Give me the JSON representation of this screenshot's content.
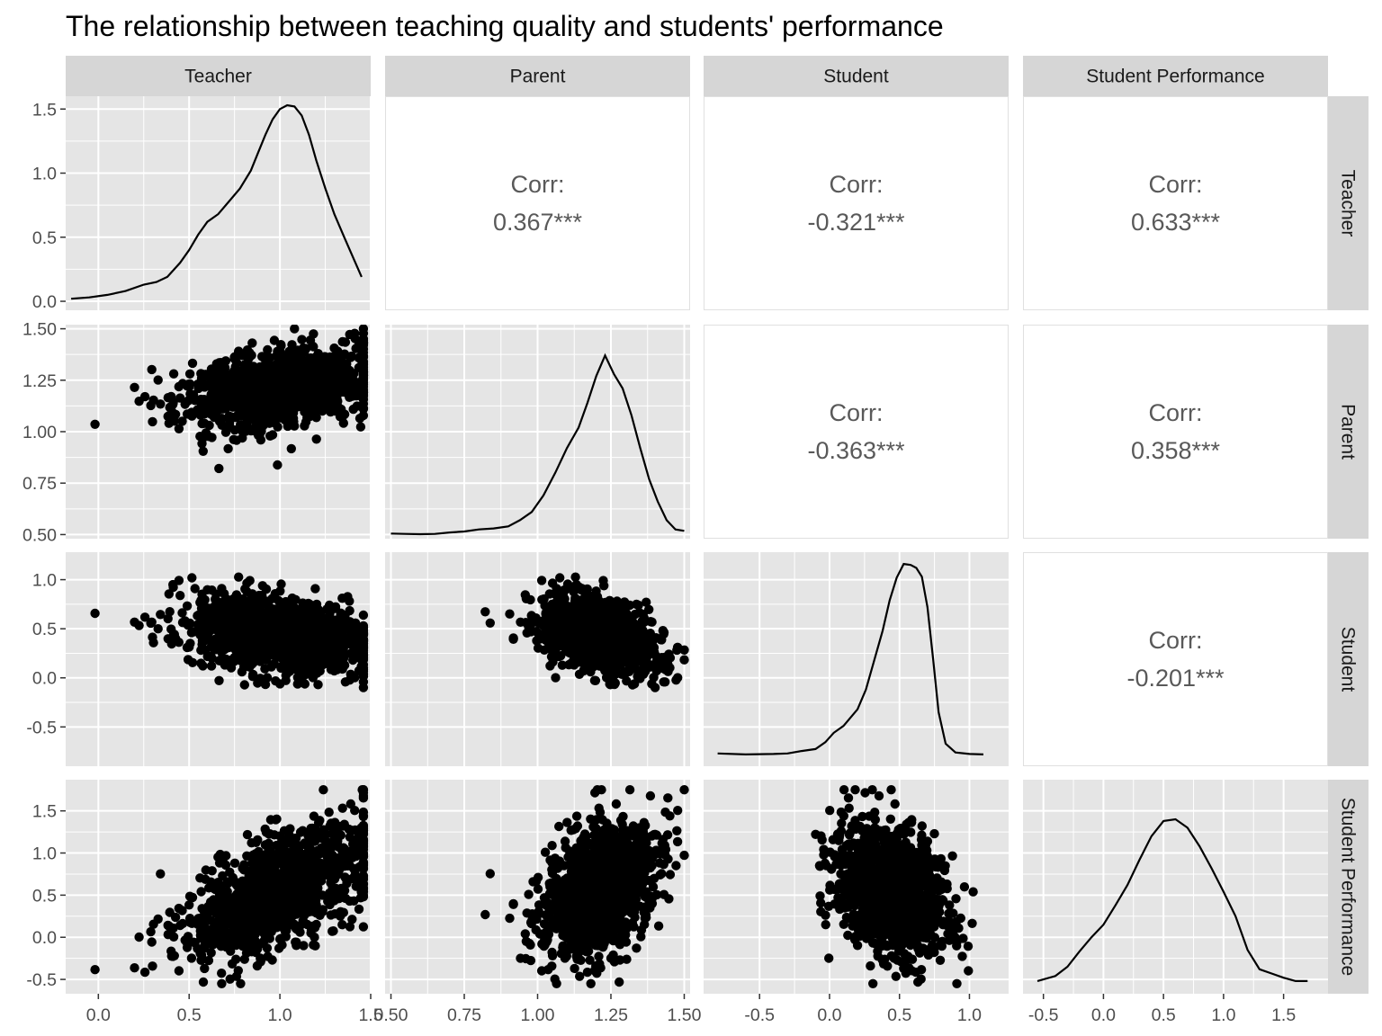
{
  "chart_data": {
    "type": "scatter-matrix",
    "title": "The relationship between teaching quality and students' performance",
    "variables": [
      "Teacher",
      "Parent",
      "Student",
      "Student Performance"
    ],
    "axes": {
      "Teacher": {
        "range": [
          -0.18,
          1.5
        ],
        "ticks": [
          0.0,
          0.5,
          1.0,
          1.5
        ],
        "labels": [
          "0.0",
          "0.5",
          "1.0",
          "1.5"
        ]
      },
      "Parent": {
        "range": [
          0.48,
          1.52
        ],
        "ticks": [
          0.5,
          0.75,
          1.0,
          1.25,
          1.5
        ],
        "labels": [
          "0.50",
          "0.75",
          "1.00",
          "1.25",
          "1.50"
        ]
      },
      "Student": {
        "range": [
          -0.9,
          1.28
        ],
        "ticks": [
          -0.5,
          0.0,
          0.5,
          1.0
        ],
        "labels": [
          "-0.5",
          "0.0",
          "0.5",
          "1.0"
        ]
      },
      "Student Performance": {
        "range": [
          -0.67,
          1.87
        ],
        "ticks": [
          -0.5,
          0.0,
          0.5,
          1.0,
          1.5
        ],
        "labels": [
          "-0.5",
          "0.0",
          "0.5",
          "1.0",
          "1.5"
        ]
      }
    },
    "density_axis": {
      "range": [
        -0.07,
        1.6
      ],
      "ticks": [
        0.0,
        0.5,
        1.0,
        1.5
      ],
      "labels": [
        "0.0",
        "0.5",
        "1.0",
        "1.5"
      ]
    },
    "correlations": [
      {
        "row": "Teacher",
        "col": "Parent",
        "label": "Corr:",
        "value": "0.367***"
      },
      {
        "row": "Teacher",
        "col": "Student",
        "label": "Corr:",
        "value": "-0.321***"
      },
      {
        "row": "Teacher",
        "col": "Student Performance",
        "label": "Corr:",
        "value": "0.633***"
      },
      {
        "row": "Parent",
        "col": "Student",
        "label": "Corr:",
        "value": "-0.363***"
      },
      {
        "row": "Parent",
        "col": "Student Performance",
        "label": "Corr:",
        "value": "0.358***"
      },
      {
        "row": "Student",
        "col": "Student Performance",
        "label": "Corr:",
        "value": "-0.201***"
      }
    ],
    "densities": {
      "Teacher": [
        [
          -0.15,
          0.02
        ],
        [
          -0.05,
          0.03
        ],
        [
          0.05,
          0.05
        ],
        [
          0.15,
          0.08
        ],
        [
          0.25,
          0.13
        ],
        [
          0.32,
          0.15
        ],
        [
          0.38,
          0.19
        ],
        [
          0.45,
          0.3
        ],
        [
          0.5,
          0.4
        ],
        [
          0.55,
          0.52
        ],
        [
          0.6,
          0.62
        ],
        [
          0.66,
          0.68
        ],
        [
          0.72,
          0.78
        ],
        [
          0.78,
          0.88
        ],
        [
          0.84,
          1.02
        ],
        [
          0.88,
          1.16
        ],
        [
          0.92,
          1.3
        ],
        [
          0.96,
          1.42
        ],
        [
          1.0,
          1.5
        ],
        [
          1.04,
          1.53
        ],
        [
          1.08,
          1.52
        ],
        [
          1.12,
          1.45
        ],
        [
          1.16,
          1.3
        ],
        [
          1.2,
          1.1
        ],
        [
          1.25,
          0.88
        ],
        [
          1.3,
          0.68
        ],
        [
          1.36,
          0.48
        ],
        [
          1.41,
          0.32
        ],
        [
          1.45,
          0.19
        ]
      ],
      "Parent": [
        [
          0.5,
          0.505
        ],
        [
          0.55,
          0.503
        ],
        [
          0.6,
          0.502
        ],
        [
          0.65,
          0.503
        ],
        [
          0.7,
          0.51
        ],
        [
          0.75,
          0.515
        ],
        [
          0.8,
          0.525
        ],
        [
          0.85,
          0.53
        ],
        [
          0.9,
          0.54
        ],
        [
          0.94,
          0.57
        ],
        [
          0.98,
          0.61
        ],
        [
          1.02,
          0.69
        ],
        [
          1.06,
          0.8
        ],
        [
          1.1,
          0.92
        ],
        [
          1.14,
          1.02
        ],
        [
          1.17,
          1.14
        ],
        [
          1.2,
          1.27
        ],
        [
          1.23,
          1.37
        ],
        [
          1.26,
          1.28
        ],
        [
          1.29,
          1.21
        ],
        [
          1.32,
          1.08
        ],
        [
          1.35,
          0.92
        ],
        [
          1.38,
          0.77
        ],
        [
          1.41,
          0.66
        ],
        [
          1.44,
          0.57
        ],
        [
          1.47,
          0.525
        ],
        [
          1.5,
          0.518
        ]
      ],
      "Student": [
        [
          -0.8,
          -0.77
        ],
        [
          -0.6,
          -0.78
        ],
        [
          -0.4,
          -0.775
        ],
        [
          -0.3,
          -0.77
        ],
        [
          -0.2,
          -0.745
        ],
        [
          -0.1,
          -0.725
        ],
        [
          -0.03,
          -0.655
        ],
        [
          0.03,
          -0.56
        ],
        [
          0.1,
          -0.49
        ],
        [
          0.2,
          -0.32
        ],
        [
          0.26,
          -0.12
        ],
        [
          0.32,
          0.18
        ],
        [
          0.38,
          0.48
        ],
        [
          0.43,
          0.79
        ],
        [
          0.48,
          1.02
        ],
        [
          0.53,
          1.16
        ],
        [
          0.58,
          1.15
        ],
        [
          0.62,
          1.12
        ],
        [
          0.66,
          1.03
        ],
        [
          0.7,
          0.72
        ],
        [
          0.74,
          0.2
        ],
        [
          0.78,
          -0.35
        ],
        [
          0.83,
          -0.67
        ],
        [
          0.9,
          -0.76
        ],
        [
          1.0,
          -0.775
        ],
        [
          1.1,
          -0.78
        ]
      ],
      "Student Performance": [
        [
          -0.55,
          -0.52
        ],
        [
          -0.4,
          -0.46
        ],
        [
          -0.3,
          -0.35
        ],
        [
          -0.2,
          -0.17
        ],
        [
          -0.1,
          0.0
        ],
        [
          0.0,
          0.15
        ],
        [
          0.1,
          0.38
        ],
        [
          0.2,
          0.62
        ],
        [
          0.3,
          0.92
        ],
        [
          0.4,
          1.2
        ],
        [
          0.5,
          1.38
        ],
        [
          0.6,
          1.4
        ],
        [
          0.7,
          1.3
        ],
        [
          0.8,
          1.08
        ],
        [
          0.9,
          0.82
        ],
        [
          1.0,
          0.54
        ],
        [
          1.1,
          0.25
        ],
        [
          1.2,
          -0.15
        ],
        [
          1.3,
          -0.38
        ],
        [
          1.4,
          -0.43
        ],
        [
          1.5,
          -0.48
        ],
        [
          1.6,
          -0.52
        ],
        [
          1.7,
          -0.52
        ]
      ]
    },
    "point_count": 1200,
    "point_color": "#000000",
    "panel_bg": "#e5e5e5",
    "strip_bg": "#d6d6d6",
    "grid_color": "#ffffff"
  }
}
